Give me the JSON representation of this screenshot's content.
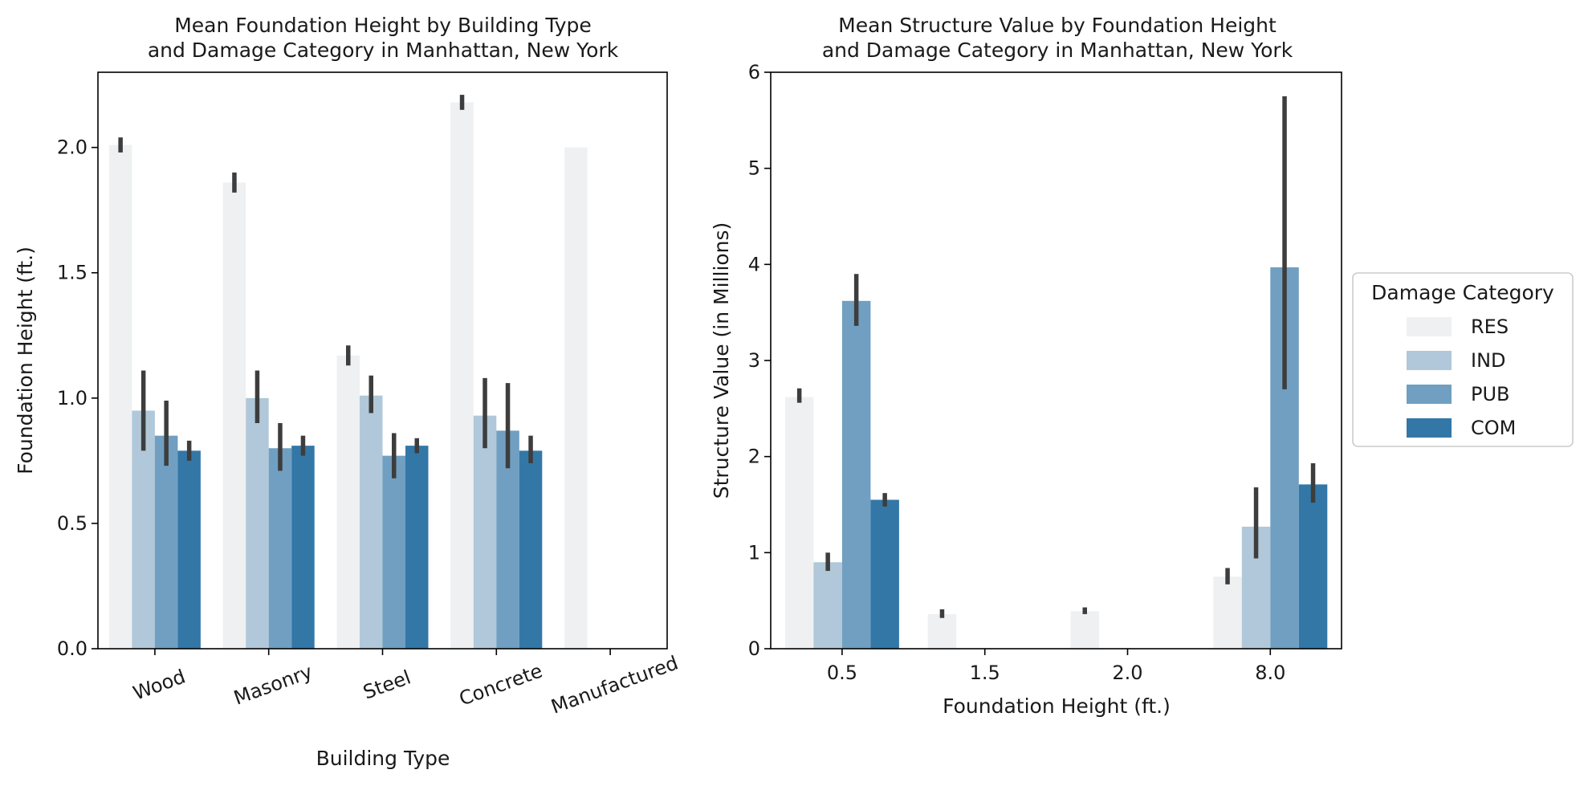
{
  "palette": {
    "RES": "#eff0f2",
    "IND": "#b0c8d9",
    "PUB": "#709fc1",
    "COM": "#3377a7",
    "errorbar": "#3d3d3d",
    "axis": "#000000"
  },
  "legend": {
    "title": "Damage Category",
    "placement": "center-right",
    "entries": [
      "RES",
      "IND",
      "PUB",
      "COM"
    ]
  },
  "chart_data": [
    {
      "type": "bar",
      "title_lines": [
        "Mean Foundation Height by Building Type",
        "and Damage Category in Manhattan, New York"
      ],
      "xlabel": "Building Type",
      "ylabel": "Foundation Height (ft.)",
      "ylim": [
        0,
        2.3
      ],
      "yticks": [
        "0.0",
        "0.5",
        "1.0",
        "1.5",
        "2.0"
      ],
      "categories": [
        "Wood",
        "Masonry",
        "Steel",
        "Concrete",
        "Manufactured"
      ],
      "series": [
        {
          "name": "RES",
          "values": [
            2.01,
            1.86,
            1.17,
            2.18,
            2.0
          ],
          "ci": [
            [
              1.98,
              2.04
            ],
            [
              1.82,
              1.9
            ],
            [
              1.13,
              1.21
            ],
            [
              2.15,
              2.21
            ],
            null
          ]
        },
        {
          "name": "IND",
          "values": [
            0.95,
            1.0,
            1.01,
            0.93,
            null
          ],
          "ci": [
            [
              0.79,
              1.11
            ],
            [
              0.9,
              1.11
            ],
            [
              0.94,
              1.09
            ],
            [
              0.8,
              1.08
            ],
            null
          ]
        },
        {
          "name": "PUB",
          "values": [
            0.85,
            0.8,
            0.77,
            0.87,
            null
          ],
          "ci": [
            [
              0.73,
              0.99
            ],
            [
              0.71,
              0.9
            ],
            [
              0.68,
              0.86
            ],
            [
              0.72,
              1.06
            ],
            null
          ]
        },
        {
          "name": "COM",
          "values": [
            0.79,
            0.81,
            0.81,
            0.79,
            null
          ],
          "ci": [
            [
              0.75,
              0.83
            ],
            [
              0.77,
              0.85
            ],
            [
              0.78,
              0.84
            ],
            [
              0.74,
              0.85
            ],
            null
          ]
        }
      ]
    },
    {
      "type": "bar",
      "title_lines": [
        "Mean Structure Value by Foundation Height",
        "and Damage Category in Manhattan, New York"
      ],
      "xlabel": "Foundation Height (ft.)",
      "ylabel": "Structure Value (in Millions)",
      "ylim": [
        0,
        6
      ],
      "yticks": [
        "0",
        "1",
        "2",
        "3",
        "4",
        "5",
        "6"
      ],
      "categories": [
        "0.5",
        "1.5",
        "2.0",
        "8.0"
      ],
      "series": [
        {
          "name": "RES",
          "values": [
            2.62,
            0.36,
            0.39,
            0.75
          ],
          "ci": [
            [
              2.56,
              2.71
            ],
            [
              0.32,
              0.41
            ],
            [
              0.36,
              0.43
            ],
            [
              0.67,
              0.84
            ]
          ]
        },
        {
          "name": "IND",
          "values": [
            0.9,
            null,
            null,
            1.27
          ],
          "ci": [
            [
              0.81,
              1.0
            ],
            null,
            null,
            [
              0.94,
              1.68
            ]
          ]
        },
        {
          "name": "PUB",
          "values": [
            3.62,
            null,
            null,
            3.97
          ],
          "ci": [
            [
              3.36,
              3.9
            ],
            null,
            null,
            [
              2.7,
              5.75
            ]
          ]
        },
        {
          "name": "COM",
          "values": [
            1.55,
            null,
            null,
            1.71
          ],
          "ci": [
            [
              1.48,
              1.62
            ],
            null,
            null,
            [
              1.52,
              1.93
            ]
          ]
        }
      ]
    }
  ]
}
